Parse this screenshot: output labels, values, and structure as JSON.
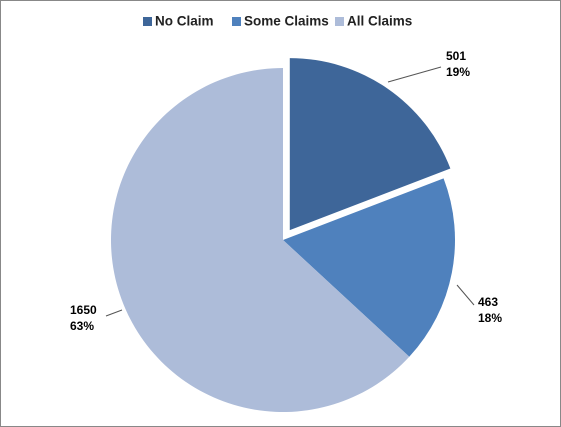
{
  "chart_data": {
    "type": "pie",
    "categories": [
      "No Claim",
      "Some Claims",
      "All Claims"
    ],
    "values": [
      501,
      463,
      1650
    ],
    "percent_labels": [
      "19%",
      "18%",
      "63%"
    ],
    "colors": [
      "#3e6699",
      "#4f81bd",
      "#adbcd9"
    ],
    "explode": [
      true,
      false,
      false
    ],
    "legend": "top"
  }
}
